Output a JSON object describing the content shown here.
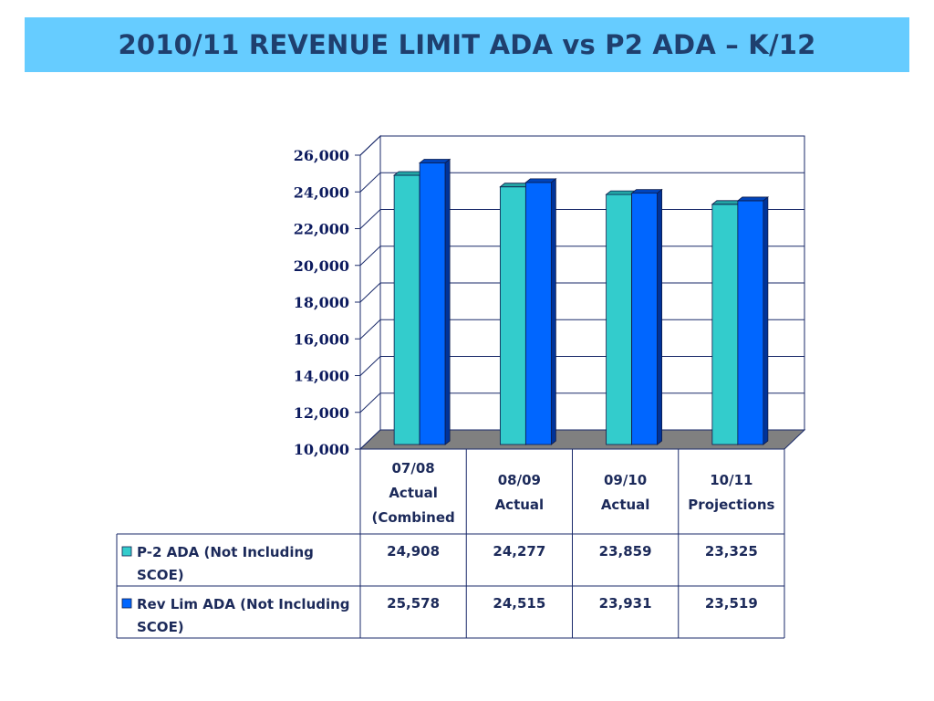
{
  "title": "2010/11 REVENUE LIMIT ADA vs P2 ADA – K/12",
  "chart_data": {
    "type": "bar",
    "categories": [
      [
        "07/08",
        "Actual",
        "(Combined"
      ],
      [
        "08/09",
        "Actual"
      ],
      [
        "09/10",
        "Actual"
      ],
      [
        "10/11",
        "Projections"
      ]
    ],
    "series": [
      {
        "name_lines": [
          "P-2 ADA (Not Including",
          "SCOE)"
        ],
        "color": "#33cccc",
        "values": [
          24908,
          24277,
          23859,
          23325
        ],
        "value_labels": [
          "24,908",
          "24,277",
          "23,859",
          "23,325"
        ]
      },
      {
        "name_lines": [
          "Rev Lim ADA (Not Including",
          "SCOE)"
        ],
        "color": "#0066ff",
        "values": [
          25578,
          24515,
          23931,
          23519
        ],
        "value_labels": [
          "25,578",
          "24,515",
          "23,931",
          "23,519"
        ]
      }
    ],
    "ylim": [
      10000,
      26000
    ],
    "yticks": [
      "10,000",
      "12,000",
      "14,000",
      "16,000",
      "18,000",
      "20,000",
      "22,000",
      "24,000",
      "26,000"
    ],
    "ytick_values": [
      10000,
      12000,
      14000,
      16000,
      18000,
      20000,
      22000,
      24000,
      26000
    ],
    "grid": true,
    "style": "3d-clustered-column",
    "legend": "data-table"
  }
}
